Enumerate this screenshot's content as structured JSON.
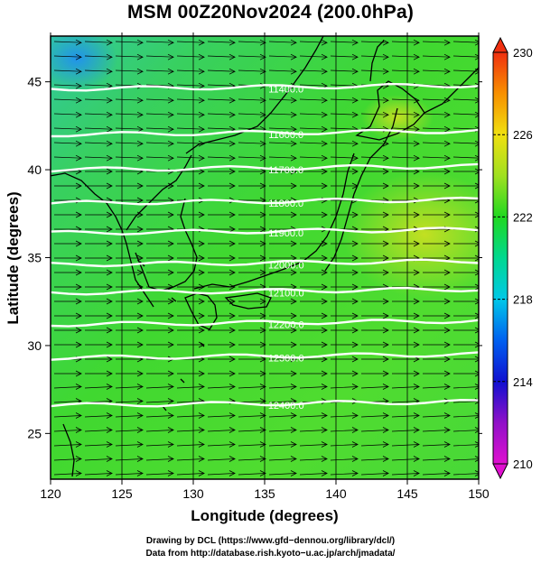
{
  "title": "MSM 00Z20Nov2024 (200.0hPa)",
  "map": {
    "x_axis": {
      "label": "Longitude (degrees)",
      "range": [
        120,
        150
      ],
      "ticks": [
        120,
        125,
        130,
        135,
        140,
        145,
        150
      ]
    },
    "y_axis": {
      "label": "Latitude  (degrees)",
      "range": [
        22.4,
        47.6
      ],
      "ticks": [
        25,
        30,
        35,
        40,
        45
      ]
    },
    "field": "temperature",
    "vectors": "wind (westerly, streamline arrows)",
    "contours": {
      "color": "#ffffff",
      "values": [
        {
          "label": "11400.0",
          "lat": 44.6
        },
        {
          "label": "11600.0",
          "lat": 42.0
        },
        {
          "label": "11700.0",
          "lat": 40.0
        },
        {
          "label": "11800.0",
          "lat": 38.1
        },
        {
          "label": "11900.0",
          "lat": 36.4
        },
        {
          "label": "12000.0",
          "lat": 34.6
        },
        {
          "label": "12100.0",
          "lat": 33.0
        },
        {
          "label": "12200.0",
          "lat": 31.2
        },
        {
          "label": "12300.0",
          "lat": 29.3
        },
        {
          "label": "12400.0",
          "lat": 26.6
        }
      ]
    }
  },
  "colorbar": {
    "min": 210,
    "max": 230,
    "ticks": [
      210,
      214,
      218,
      222,
      226,
      230
    ],
    "colors": [
      "#e010d0",
      "#8000c0",
      "#0030e0",
      "#00b8e8",
      "#00d8a0",
      "#20d820",
      "#a0e020",
      "#f0e010",
      "#f8a000",
      "#f04020"
    ]
  },
  "credits": {
    "line1": "Drawing by DCL (https://www.gfd−dennou.org/library/dcl/)",
    "line2": "Data from http://database.rish.kyoto−u.ac.jp/arch/jmadata/"
  }
}
